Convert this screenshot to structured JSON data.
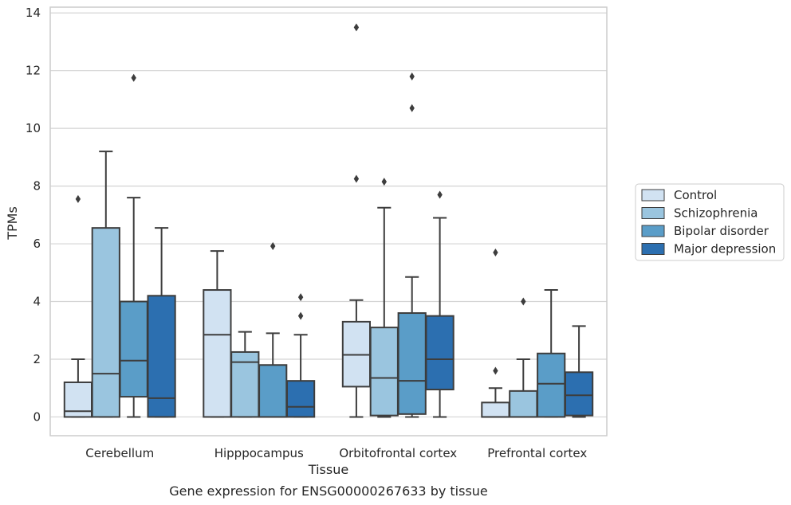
{
  "chart_data": {
    "type": "box",
    "title": "",
    "xlabel": "Tissue",
    "ylabel": "TPMs",
    "caption": "Gene expression for ENSG00000267633 by tissue",
    "ylim": [
      -0.65,
      14.2
    ],
    "yticks": [
      0,
      2,
      4,
      6,
      8,
      10,
      12,
      14
    ],
    "grid": "horizontal",
    "legend_position": "right",
    "categories": [
      "Cerebellum",
      "Hipppocampus",
      "Orbitofrontal cortex",
      "Prefrontal cortex"
    ],
    "series": [
      {
        "name": "Control",
        "color": "#d1e2f2",
        "boxes": [
          {
            "whislo": 0,
            "q1": 0,
            "med": 0.2,
            "q3": 1.2,
            "whishi": 2.0,
            "fliers": [
              7.55
            ]
          },
          {
            "whislo": 0,
            "q1": 0,
            "med": 2.85,
            "q3": 4.4,
            "whishi": 5.75,
            "fliers": []
          },
          {
            "whislo": 0,
            "q1": 1.05,
            "med": 2.15,
            "q3": 3.3,
            "whishi": 4.05,
            "fliers": [
              8.25,
              13.5
            ]
          },
          {
            "whislo": 0,
            "q1": 0,
            "med": 0,
            "q3": 0.5,
            "whishi": 1.0,
            "fliers": [
              1.6,
              5.7
            ]
          }
        ]
      },
      {
        "name": "Schizophrenia",
        "color": "#9ac5df",
        "boxes": [
          {
            "whislo": 0,
            "q1": 0,
            "med": 1.5,
            "q3": 6.55,
            "whishi": 9.2,
            "fliers": []
          },
          {
            "whislo": 0,
            "q1": 0,
            "med": 1.9,
            "q3": 2.25,
            "whishi": 2.95,
            "fliers": []
          },
          {
            "whislo": 0,
            "q1": 0.05,
            "med": 1.35,
            "q3": 3.1,
            "whishi": 7.25,
            "fliers": [
              8.15
            ]
          },
          {
            "whislo": 0,
            "q1": 0,
            "med": 0,
            "q3": 0.9,
            "whishi": 2.0,
            "fliers": [
              4.0
            ]
          }
        ]
      },
      {
        "name": "Bipolar disorder",
        "color": "#5a9dc8",
        "boxes": [
          {
            "whislo": 0,
            "q1": 0.7,
            "med": 1.95,
            "q3": 4.0,
            "whishi": 7.6,
            "fliers": [
              11.75
            ]
          },
          {
            "whislo": 0,
            "q1": 0,
            "med": 0,
            "q3": 1.8,
            "whishi": 2.9,
            "fliers": [
              5.92
            ]
          },
          {
            "whislo": 0,
            "q1": 0.1,
            "med": 1.25,
            "q3": 3.6,
            "whishi": 4.85,
            "fliers": [
              10.7,
              11.8
            ]
          },
          {
            "whislo": 0,
            "q1": 0,
            "med": 1.15,
            "q3": 2.2,
            "whishi": 4.4,
            "fliers": []
          }
        ]
      },
      {
        "name": "Major depression",
        "color": "#2c6fb0",
        "boxes": [
          {
            "whislo": 0,
            "q1": 0,
            "med": 0.65,
            "q3": 4.2,
            "whishi": 6.55,
            "fliers": []
          },
          {
            "whislo": 0,
            "q1": 0,
            "med": 0.35,
            "q3": 1.25,
            "whishi": 2.85,
            "fliers": [
              3.5,
              4.15
            ]
          },
          {
            "whislo": 0,
            "q1": 0.95,
            "med": 2.0,
            "q3": 3.5,
            "whishi": 6.9,
            "fliers": [
              7.7
            ]
          },
          {
            "whislo": 0,
            "q1": 0.05,
            "med": 0.75,
            "q3": 1.55,
            "whishi": 3.15,
            "fliers": []
          }
        ]
      }
    ]
  }
}
